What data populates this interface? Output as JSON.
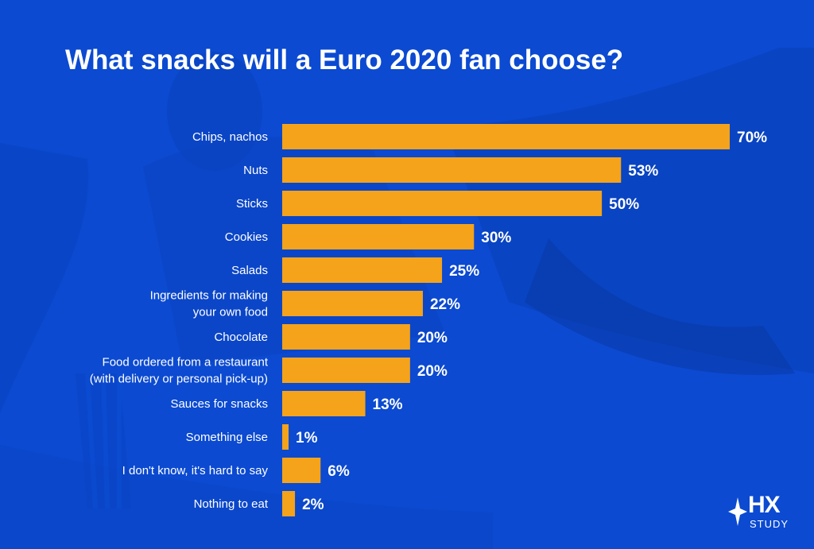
{
  "colors": {
    "background": "#0b4ad1",
    "bar": "#f5a31a",
    "text": "#ffffff"
  },
  "logo": {
    "text": "HX",
    "subtext": "STUDY",
    "icon": "star-icon"
  },
  "chart_data": {
    "type": "bar",
    "orientation": "horizontal",
    "title": "What snacks will a Euro 2020 fan choose?",
    "xlabel": "",
    "ylabel": "",
    "grid": false,
    "legend": "none",
    "xlim": [
      0,
      70
    ],
    "unit": "%",
    "categories": [
      [
        "Chips, nachos"
      ],
      [
        "Nuts"
      ],
      [
        "Sticks"
      ],
      [
        "Cookies"
      ],
      [
        "Salads"
      ],
      [
        "Ingredients for making",
        "your own food"
      ],
      [
        "Chocolate"
      ],
      [
        "Food ordered from a restaurant",
        "(with delivery or personal pick-up)"
      ],
      [
        "Sauces for snacks"
      ],
      [
        "Something else"
      ],
      [
        "I don't know, it's hard to say"
      ],
      [
        "Nothing to eat"
      ]
    ],
    "values": [
      70,
      53,
      50,
      30,
      25,
      22,
      20,
      20,
      13,
      1,
      6,
      2
    ],
    "value_labels": [
      "70%",
      "53%",
      "50%",
      "30%",
      "25%",
      "22%",
      "20%",
      "20%",
      "13%",
      "1%",
      "6%",
      "2%"
    ]
  }
}
